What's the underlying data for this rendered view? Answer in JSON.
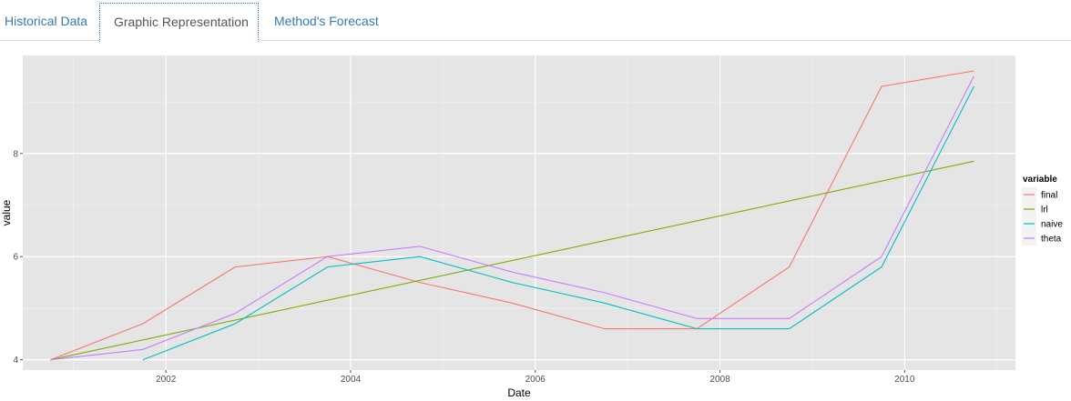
{
  "tabs": [
    {
      "label": "Historical Data",
      "active": false
    },
    {
      "label": "Graphic Representation",
      "active": true
    },
    {
      "label": "Method's Forecast",
      "active": false
    }
  ],
  "colors": {
    "panel_bg": "#e5e5e5",
    "grid": "#ffffff",
    "tab_link": "#337ab7",
    "tab_active_text": "#555555"
  },
  "chart_data": {
    "type": "line",
    "xlabel": "Date",
    "ylabel": "value",
    "x_ticks": [
      2002,
      2004,
      2006,
      2008,
      2010
    ],
    "y_ticks": [
      4,
      6,
      8
    ],
    "xlim": [
      2000.45,
      2011.2
    ],
    "ylim": [
      3.8,
      9.9
    ],
    "grid": true,
    "legend": {
      "title": "variable",
      "position": "right"
    },
    "series": [
      {
        "name": "final",
        "color": "#f8766d",
        "points": [
          [
            2000.75,
            4.0
          ],
          [
            2001.75,
            4.7
          ],
          [
            2002.75,
            5.8
          ],
          [
            2003.75,
            6.0
          ],
          [
            2004.75,
            5.5
          ],
          [
            2005.75,
            5.1
          ],
          [
            2006.75,
            4.6
          ],
          [
            2007.75,
            4.6
          ],
          [
            2008.75,
            5.8
          ],
          [
            2009.75,
            9.3
          ],
          [
            2010.75,
            9.6
          ]
        ]
      },
      {
        "name": "lrl",
        "color": "#7cae00",
        "points": [
          [
            2000.75,
            4.0
          ],
          [
            2010.75,
            7.85
          ]
        ]
      },
      {
        "name": "naive",
        "color": "#00bfc4",
        "points": [
          [
            2001.75,
            4.0
          ],
          [
            2002.75,
            4.7
          ],
          [
            2003.75,
            5.8
          ],
          [
            2004.75,
            6.0
          ],
          [
            2005.75,
            5.5
          ],
          [
            2006.75,
            5.1
          ],
          [
            2007.75,
            4.6
          ],
          [
            2008.75,
            4.6
          ],
          [
            2009.75,
            5.8
          ],
          [
            2010.75,
            9.3
          ]
        ]
      },
      {
        "name": "theta",
        "color": "#c77cff",
        "points": [
          [
            2000.75,
            4.0
          ],
          [
            2001.75,
            4.2
          ],
          [
            2002.75,
            4.9
          ],
          [
            2003.75,
            6.0
          ],
          [
            2004.75,
            6.2
          ],
          [
            2005.75,
            5.7
          ],
          [
            2006.75,
            5.3
          ],
          [
            2007.75,
            4.8
          ],
          [
            2008.75,
            4.8
          ],
          [
            2009.75,
            6.0
          ],
          [
            2010.75,
            9.5
          ]
        ]
      }
    ]
  }
}
